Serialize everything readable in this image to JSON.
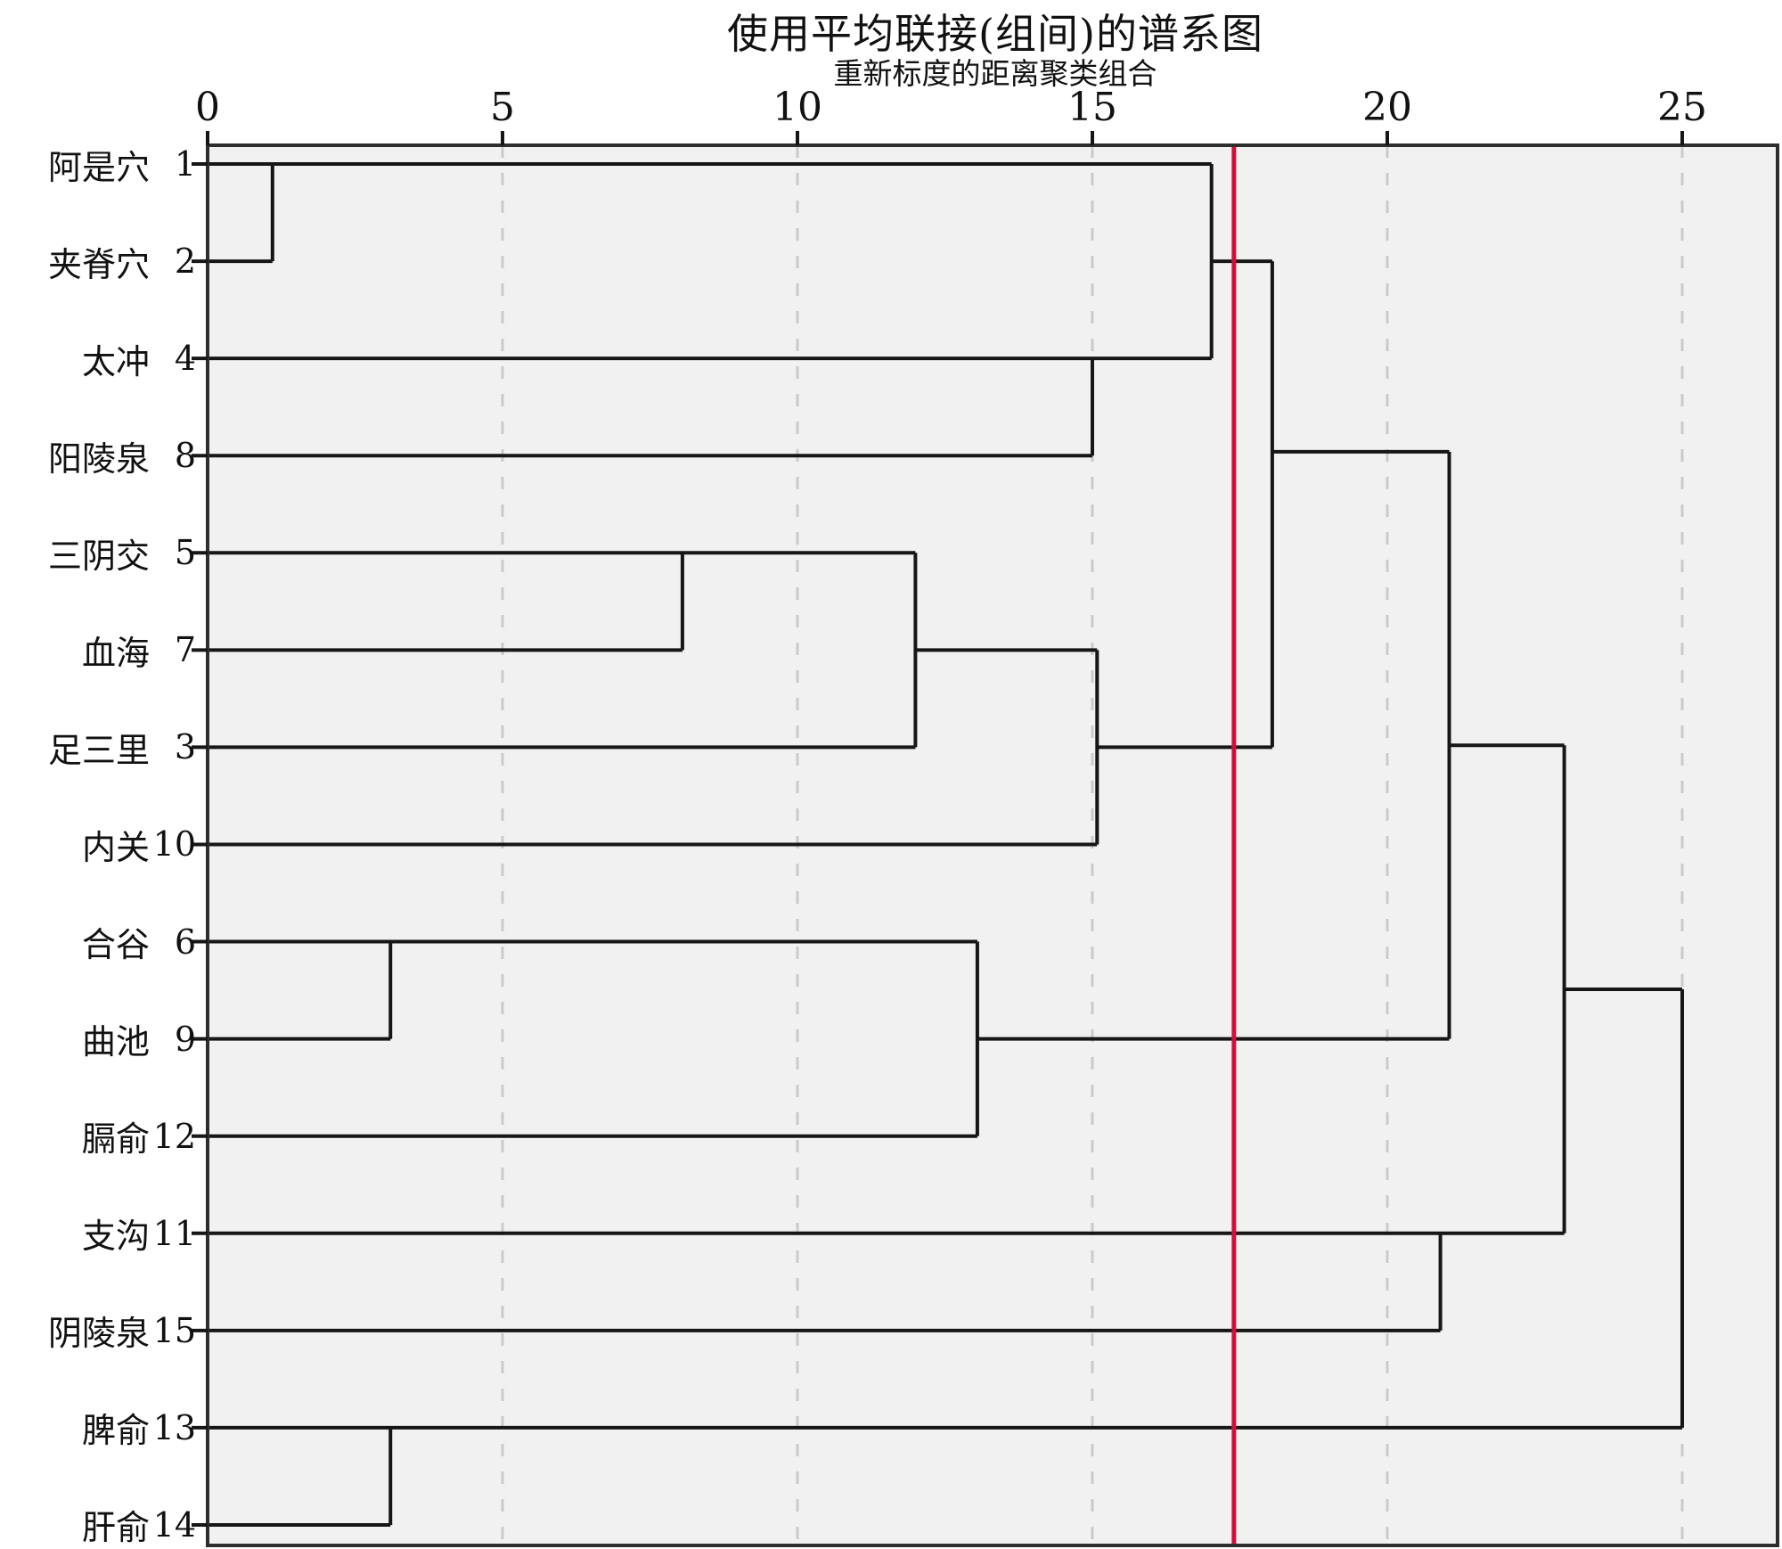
{
  "title": "使用平均联接(组间)的谱系图",
  "subtitle": "重新标度的距离聚类组合",
  "colors": {
    "line": "#161616",
    "frame": "#2e2e2e",
    "grid": "#c8cacc",
    "cut_line": "#d01039",
    "plot_bg": "#f1f1f2",
    "page_bg": "#ffffff"
  },
  "axis": {
    "min": 0,
    "max": 25,
    "ticks": [
      "0",
      "5",
      "10",
      "15",
      "20",
      "25"
    ]
  },
  "leaves": [
    {
      "name": "阿是穴",
      "num": "1"
    },
    {
      "name": "夹脊穴",
      "num": "2"
    },
    {
      "name": "太冲",
      "num": "4"
    },
    {
      "name": "阳陵泉",
      "num": "8"
    },
    {
      "name": "三阴交",
      "num": "5"
    },
    {
      "name": "血海",
      "num": "7"
    },
    {
      "name": "足三里",
      "num": "3"
    },
    {
      "name": "内关",
      "num": "10"
    },
    {
      "name": "合谷",
      "num": "6"
    },
    {
      "name": "曲池",
      "num": "9"
    },
    {
      "name": "膈俞",
      "num": "12"
    },
    {
      "name": "支沟",
      "num": "11"
    },
    {
      "name": "阴陵泉",
      "num": "15"
    },
    {
      "name": "脾俞",
      "num": "13"
    },
    {
      "name": "肝俞",
      "num": "14"
    }
  ],
  "chart_data": {
    "type": "dendrogram",
    "orientation": "horizontal",
    "title": "使用平均联接(组间)的谱系图",
    "subtitle": "重新标度的距离聚类组合",
    "xlabel_ticks": [
      0,
      5,
      10,
      15,
      20,
      25
    ],
    "xlim": [
      0,
      25
    ],
    "grid": "dashed-vertical-at-ticks",
    "cut_line_distance": 17.4,
    "leaves_order": [
      "阿是穴 1",
      "夹脊穴 2",
      "太冲 4",
      "阳陵泉 8",
      "三阴交 5",
      "血海 7",
      "足三里 3",
      "内关 10",
      "合谷 6",
      "曲池 9",
      "膈俞 12",
      "支沟 11",
      "阴陵泉 15",
      "脾俞 13",
      "肝俞 14"
    ],
    "merges": [
      {
        "a": "阿是穴(1)",
        "b": "夹脊穴(2)",
        "distance": 1.1
      },
      {
        "a": "合谷(6)",
        "b": "曲池(9)",
        "distance": 3.1
      },
      {
        "a": "脾俞(13)",
        "b": "肝俞(14)",
        "distance": 3.1
      },
      {
        "a": "三阴交(5)",
        "b": "血海(7)",
        "distance": 8.1
      },
      {
        "a": "{5,7}",
        "b": "足三里(3)",
        "distance": 12.0
      },
      {
        "a": "{6,9}",
        "b": "膈俞(12)",
        "distance": 13.1
      },
      {
        "a": "太冲(4)",
        "b": "阳陵泉(8)",
        "distance": 15.0
      },
      {
        "a": "{5,7,3}",
        "b": "内关(10)",
        "distance": 15.1
      },
      {
        "a": "{1,2}",
        "b": "{4,8}",
        "distance": 17.0
      },
      {
        "a": "{1,2,4,8}",
        "b": "{5,7,3,10}",
        "distance": 18.0
      },
      {
        "a": "支沟(11)",
        "b": "阴陵泉(15)",
        "distance": 20.9
      },
      {
        "a": "{1,2,4,8,5,7,3,10}",
        "b": "{6,9,12}",
        "distance": 21.0
      },
      {
        "a": "{1,2,4,8,5,7,3,10,6,9,12}",
        "b": "{11,15}",
        "distance": 23.0
      },
      {
        "a": "{1,2,4,8,5,7,3,10,6,9,12,11,15}",
        "b": "{13,14}",
        "distance": 25.0
      }
    ],
    "segments": {
      "horizontal": [
        {
          "u0": 0,
          "u1": 17.02,
          "r": 0
        },
        {
          "u0": 0,
          "u1": 1.1,
          "r": 1
        },
        {
          "u0": 17.02,
          "u1": 18.05,
          "r": 1
        },
        {
          "u0": 0,
          "u1": 17.02,
          "r": 2
        },
        {
          "u0": 0,
          "u1": 15.0,
          "r": 3
        },
        {
          "u0": 0,
          "u1": 12.0,
          "r": 4
        },
        {
          "u0": 0,
          "u1": 8.05,
          "r": 5
        },
        {
          "u0": 12.0,
          "u1": 15.08,
          "r": 5
        },
        {
          "u0": 0,
          "u1": 12.0,
          "r": 6
        },
        {
          "u0": 15.08,
          "u1": 18.05,
          "r": 6
        },
        {
          "u0": 0,
          "u1": 15.08,
          "r": 7
        },
        {
          "u0": 18.05,
          "u1": 21.05,
          "r": 2.96
        },
        {
          "u0": 0,
          "u1": 13.05,
          "r": 8
        },
        {
          "u0": 0,
          "u1": 3.1,
          "r": 9
        },
        {
          "u0": 13.05,
          "u1": 21.05,
          "r": 9
        },
        {
          "u0": 0,
          "u1": 13.05,
          "r": 10
        },
        {
          "u0": 21.05,
          "u1": 23.0,
          "r": 5.98
        },
        {
          "u0": 0,
          "u1": 23.0,
          "r": 11
        },
        {
          "u0": 0,
          "u1": 20.9,
          "r": 12
        },
        {
          "u0": 23.0,
          "u1": 25.0,
          "r": 8.49
        },
        {
          "u0": 0,
          "u1": 25.0,
          "r": 13
        },
        {
          "u0": 0,
          "u1": 3.1,
          "r": 14
        }
      ],
      "vertical": [
        {
          "u": 1.1,
          "r0": 0,
          "r1": 1
        },
        {
          "u": 8.05,
          "r0": 4,
          "r1": 5
        },
        {
          "u": 12.0,
          "r0": 4,
          "r1": 6
        },
        {
          "u": 15.08,
          "r0": 5,
          "r1": 7
        },
        {
          "u": 15.0,
          "r0": 2,
          "r1": 3
        },
        {
          "u": 17.02,
          "r0": 0,
          "r1": 2
        },
        {
          "u": 18.05,
          "r0": 1,
          "r1": 6
        },
        {
          "u": 3.1,
          "r0": 8,
          "r1": 9
        },
        {
          "u": 13.05,
          "r0": 8,
          "r1": 10
        },
        {
          "u": 21.05,
          "r0": 2.96,
          "r1": 9
        },
        {
          "u": 20.9,
          "r0": 11,
          "r1": 12
        },
        {
          "u": 23.0,
          "r0": 5.98,
          "r1": 11
        },
        {
          "u": 3.1,
          "r0": 13,
          "r1": 14
        },
        {
          "u": 25.0,
          "r0": 8.49,
          "r1": 13
        }
      ]
    }
  }
}
